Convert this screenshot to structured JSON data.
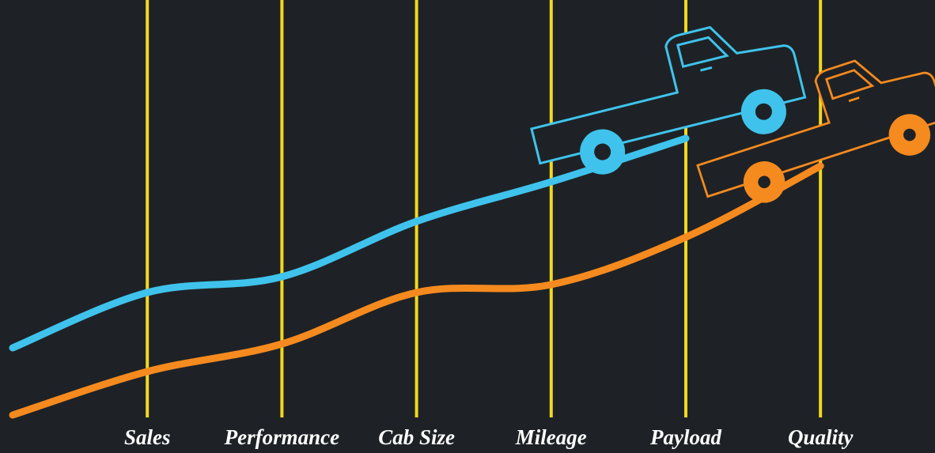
{
  "chart_data": {
    "type": "line",
    "categories": [
      null,
      "Sales",
      "Performance",
      "Cab Size",
      "Mileage",
      "Payload",
      "Quality"
    ],
    "series": [
      {
        "color": "#3fc3ec",
        "values": [
          24,
          38,
          42,
          56,
          66,
          77,
          null
        ]
      },
      {
        "color": "#f58a1f",
        "values": [
          7,
          18,
          25,
          38,
          40,
          52,
          70
        ]
      }
    ],
    "ylim": [
      0,
      100
    ],
    "grid": true,
    "grid_color": "#f0d820"
  }
}
